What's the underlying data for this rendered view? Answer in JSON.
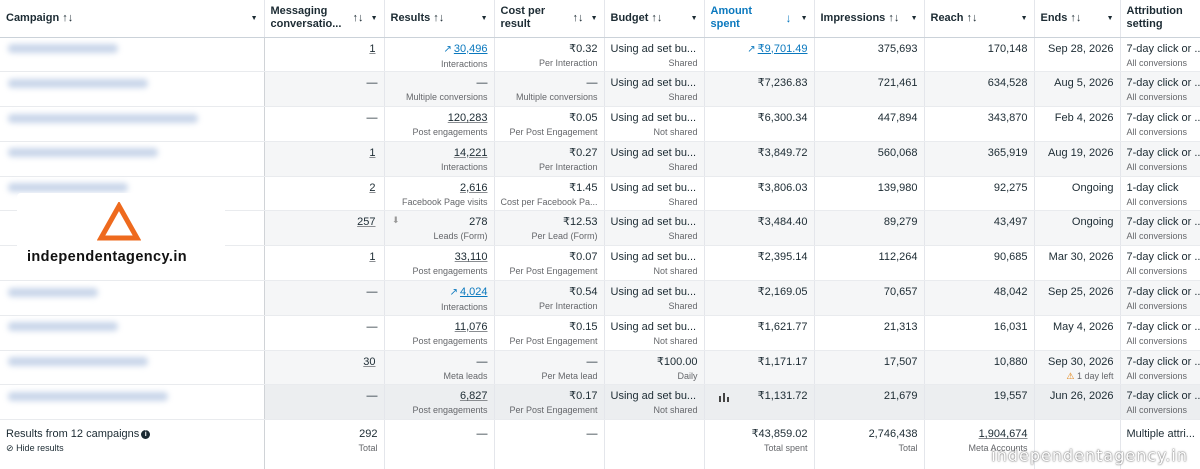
{
  "columns": {
    "campaign": "Campaign",
    "messaging": "Messaging conversatio...",
    "results": "Results",
    "cost": "Cost per result",
    "budget": "Budget",
    "amount": "Amount spent",
    "impressions": "Impressions",
    "reach": "Reach",
    "ends": "Ends",
    "attribution": "Attribution setting"
  },
  "icons": {
    "sort": "↑↓",
    "dropdown": "▼",
    "sort_desc": "↓",
    "trend": "↗",
    "warning": "⚠",
    "download": "⬇",
    "chart": "bar-chart-icon",
    "eye_off": "eye-off-icon"
  },
  "rows": [
    {
      "msg": "1",
      "res": "30,496",
      "res_sub": "Interactions",
      "res_trend": true,
      "cost": "₹0.32",
      "cost_sub": "Per Interaction",
      "budget": "Using ad set bu...",
      "budget_sub": "Shared",
      "amount": "₹9,701.49",
      "amount_trend": true,
      "impr": "375,693",
      "reach": "170,148",
      "ends": "Sep 28, 2026",
      "attr": "7-day click or ...",
      "attr_sub": "All conversions"
    },
    {
      "msg": "—",
      "res": "—",
      "res_sub": "Multiple conversions",
      "cost": "—",
      "cost_sub": "Multiple conversions",
      "budget": "Using ad set bu...",
      "budget_sub": "Shared",
      "amount": "₹7,236.83",
      "impr": "721,461",
      "reach": "634,528",
      "ends": "Aug 5, 2026",
      "attr": "7-day click or ...",
      "attr_sub": "All conversions"
    },
    {
      "msg": "—",
      "res": "120,283",
      "res_sub": "Post engagements",
      "cost": "₹0.05",
      "cost_sub": "Per Post Engagement",
      "budget": "Using ad set bu...",
      "budget_sub": "Not shared",
      "amount": "₹6,300.34",
      "impr": "447,894",
      "reach": "343,870",
      "ends": "Feb 4, 2026",
      "attr": "7-day click or ...",
      "attr_sub": "All conversions"
    },
    {
      "msg": "1",
      "res": "14,221",
      "res_sub": "Interactions",
      "cost": "₹0.27",
      "cost_sub": "Per Interaction",
      "budget": "Using ad set bu...",
      "budget_sub": "Shared",
      "amount": "₹3,849.72",
      "impr": "560,068",
      "reach": "365,919",
      "ends": "Aug 19, 2026",
      "attr": "7-day click or ...",
      "attr_sub": "All conversions"
    },
    {
      "msg": "2",
      "res": "2,616",
      "res_sub": "Facebook Page visits",
      "cost": "₹1.45",
      "cost_sub": "Cost per Facebook Pa...",
      "budget": "Using ad set bu...",
      "budget_sub": "Shared",
      "amount": "₹3,806.03",
      "impr": "139,980",
      "reach": "92,275",
      "ends": "Ongoing",
      "attr": "1-day click",
      "attr_sub": "All conversions"
    },
    {
      "msg": "257",
      "res": "278",
      "res_sub": "Leads (Form)",
      "cost": "₹12.53",
      "cost_sub": "Per Lead (Form)",
      "budget": "Using ad set bu...",
      "budget_sub": "Shared",
      "amount": "₹3,484.40",
      "impr": "89,279",
      "reach": "43,497",
      "ends": "Ongoing",
      "attr": "7-day click or ...",
      "attr_sub": "All conversions"
    },
    {
      "msg": "1",
      "res": "33,110",
      "res_sub": "Post engagements",
      "cost": "₹0.07",
      "cost_sub": "Per Post Engagement",
      "budget": "Using ad set bu...",
      "budget_sub": "Not shared",
      "amount": "₹2,395.14",
      "impr": "112,264",
      "reach": "90,685",
      "ends": "Mar 30, 2026",
      "attr": "7-day click or ...",
      "attr_sub": "All conversions"
    },
    {
      "msg": "—",
      "res": "4,024",
      "res_sub": "Interactions",
      "res_trend": true,
      "cost": "₹0.54",
      "cost_sub": "Per Interaction",
      "budget": "Using ad set bu...",
      "budget_sub": "Shared",
      "amount": "₹2,169.05",
      "impr": "70,657",
      "reach": "48,042",
      "ends": "Sep 25, 2026",
      "attr": "7-day click or ...",
      "attr_sub": "All conversions"
    },
    {
      "msg": "—",
      "res": "11,076",
      "res_sub": "Post engagements",
      "cost": "₹0.15",
      "cost_sub": "Per Post Engagement",
      "budget": "Using ad set bu...",
      "budget_sub": "Not shared",
      "amount": "₹1,621.77",
      "impr": "21,313",
      "reach": "16,031",
      "ends": "May 4, 2026",
      "attr": "7-day click or ...",
      "attr_sub": "All conversions"
    },
    {
      "msg": "30",
      "res": "—",
      "res_sub": "Meta leads",
      "cost": "—",
      "cost_sub": "Per Meta lead",
      "budget": "₹100.00",
      "budget_right": true,
      "budget_sub": "Daily",
      "amount": "₹1,171.17",
      "impr": "17,507",
      "reach": "10,880",
      "ends": "Sep 30, 2026",
      "ends_sub": "1 day left",
      "attr": "7-day click or ...",
      "attr_sub": "All conversions"
    },
    {
      "msg": "—",
      "res": "6,827",
      "res_sub": "Post engagements",
      "cost": "₹0.17",
      "cost_sub": "Per Post Engagement",
      "budget": "Using ad set bu...",
      "budget_sub": "Not shared",
      "amount": "₹1,131.72",
      "impr": "21,679",
      "reach": "19,557",
      "ends": "Jun 26, 2026",
      "attr": "7-day click or ...",
      "attr_sub": "All conversions"
    }
  ],
  "footer": {
    "results_from": "Results from 12 campaigns",
    "hide": "Hide results",
    "msg": "292",
    "msg_sub": "Total",
    "res": "—",
    "cost": "—",
    "amount": "₹43,859.02",
    "amount_sub": "Total spent",
    "impr": "2,746,438",
    "impr_sub": "Total",
    "reach": "1,904,674",
    "reach_sub": "Meta Accounts",
    "attr": "Multiple attri..."
  },
  "logo_text": "independentagency.in",
  "watermark": "independentagency.in"
}
